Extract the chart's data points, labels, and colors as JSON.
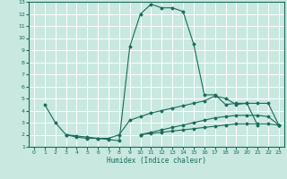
{
  "xlabel": "Humidex (Indice chaleur)",
  "bg_color": "#c8e8e0",
  "grid_color": "#ffffff",
  "line_color": "#1a6b5a",
  "xlim": [
    -0.5,
    23.5
  ],
  "ylim": [
    1,
    13
  ],
  "xticks": [
    0,
    1,
    2,
    3,
    4,
    5,
    6,
    7,
    8,
    9,
    10,
    11,
    12,
    13,
    14,
    15,
    16,
    17,
    18,
    19,
    20,
    21,
    22,
    23
  ],
  "yticks": [
    1,
    2,
    3,
    4,
    5,
    6,
    7,
    8,
    9,
    10,
    11,
    12,
    13
  ],
  "line1_x": [
    1,
    2,
    3,
    4,
    5,
    6,
    7,
    8,
    9,
    10,
    11,
    12,
    13,
    14,
    15,
    16,
    17,
    18,
    19,
    20,
    21
  ],
  "line1_y": [
    4.5,
    3.0,
    2.0,
    1.8,
    1.7,
    1.7,
    1.6,
    1.5,
    9.3,
    12.0,
    12.8,
    12.5,
    12.5,
    12.2,
    9.5,
    5.3,
    5.3,
    4.5,
    4.6,
    4.6,
    2.8
  ],
  "line2_x": [
    3,
    4,
    5,
    6,
    7,
    8,
    9,
    10,
    11,
    12,
    13,
    14,
    15,
    16,
    17,
    18,
    19,
    20,
    21,
    22,
    23
  ],
  "line2_y": [
    2.0,
    1.9,
    1.8,
    1.7,
    1.7,
    2.0,
    3.2,
    3.5,
    3.8,
    4.0,
    4.2,
    4.4,
    4.6,
    4.8,
    5.2,
    5.0,
    4.5,
    4.6,
    4.6,
    4.6,
    2.8
  ],
  "line3_x": [
    10,
    11,
    12,
    13,
    14,
    15,
    16,
    17,
    18,
    19,
    20,
    21,
    22,
    23
  ],
  "line3_y": [
    2.0,
    2.2,
    2.4,
    2.6,
    2.8,
    3.0,
    3.2,
    3.4,
    3.5,
    3.6,
    3.6,
    3.6,
    3.5,
    2.8
  ],
  "line4_x": [
    10,
    11,
    12,
    13,
    14,
    15,
    16,
    17,
    18,
    19,
    20,
    21,
    22,
    23
  ],
  "line4_y": [
    2.0,
    2.1,
    2.2,
    2.3,
    2.4,
    2.5,
    2.6,
    2.7,
    2.8,
    2.9,
    2.9,
    2.9,
    2.9,
    2.8
  ]
}
